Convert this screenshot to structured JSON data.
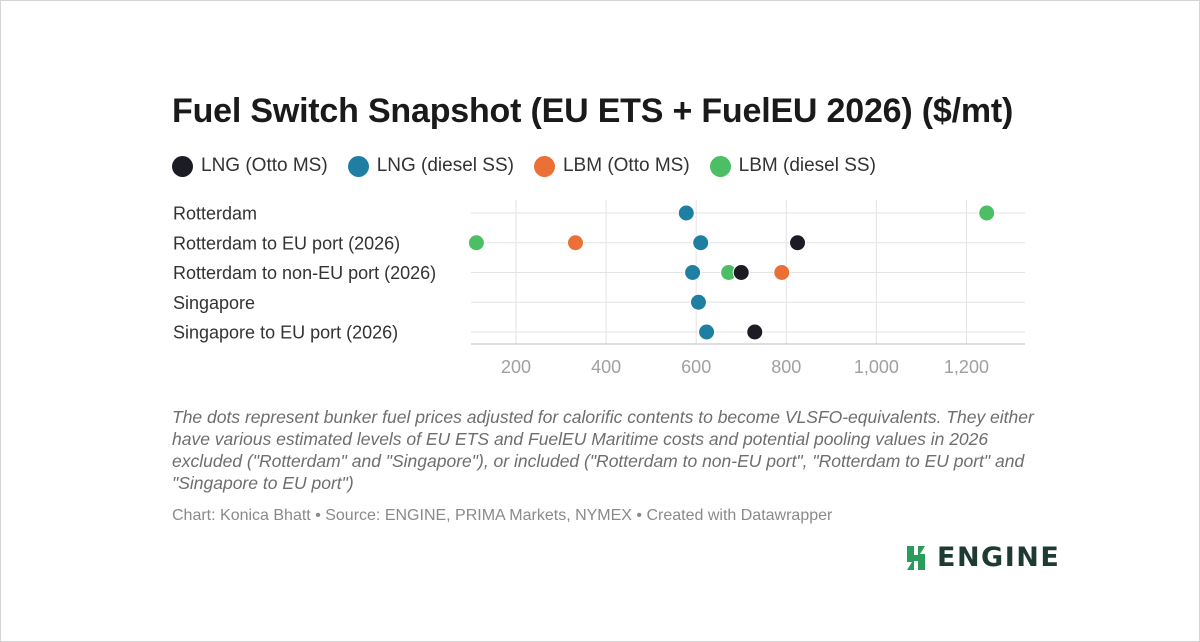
{
  "chart_data": {
    "type": "scatter",
    "title": "Fuel Switch Snapshot (EU ETS + FuelEU 2026) ($/mt)",
    "categories": [
      "Rotterdam",
      "Rotterdam to EU port (2026)",
      "Rotterdam to non-EU port (2026)",
      "Singapore",
      "Singapore to EU port (2026)"
    ],
    "xlim": [
      100,
      1330
    ],
    "xticks": [
      200,
      400,
      600,
      800,
      1000,
      1200
    ],
    "xtick_labels": [
      "200",
      "400",
      "600",
      "800",
      "1,000",
      "1,200"
    ],
    "grid": true,
    "legend_position": "top-left",
    "series": [
      {
        "name": "LNG (Otto MS)",
        "color": "#1c1c24",
        "values": [
          null,
          825,
          700,
          null,
          730
        ]
      },
      {
        "name": "LNG (diesel SS)",
        "color": "#1f7fa3",
        "values": [
          578,
          610,
          592,
          605,
          623
        ]
      },
      {
        "name": "LBM (Otto MS)",
        "color": "#ea7035",
        "values": [
          null,
          332,
          790,
          null,
          null
        ]
      },
      {
        "name": "LBM (diesel SS)",
        "color": "#4cbe63",
        "values": [
          1245,
          112,
          672,
          null,
          null
        ]
      }
    ],
    "caption": "The dots represent bunker fuel prices adjusted for calorific contents to become VLSFO-equivalents. They either have various estimated levels of EU ETS and FuelEU Maritime costs and potential pooling values in 2026 excluded (\"Rotterdam\" and \"Singapore\"), or included (\"Rotterdam to non-EU port\", \"Rotterdam to EU port\" and \"Singapore to EU port\")",
    "footer": "Chart: Konica Bhatt • Source: ENGINE, PRIMA Markets, NYMEX • Created with Datawrapper"
  },
  "logo": {
    "text": "ENGINE",
    "icon": "engine-logo-icon",
    "color": "#2a9d5c"
  }
}
